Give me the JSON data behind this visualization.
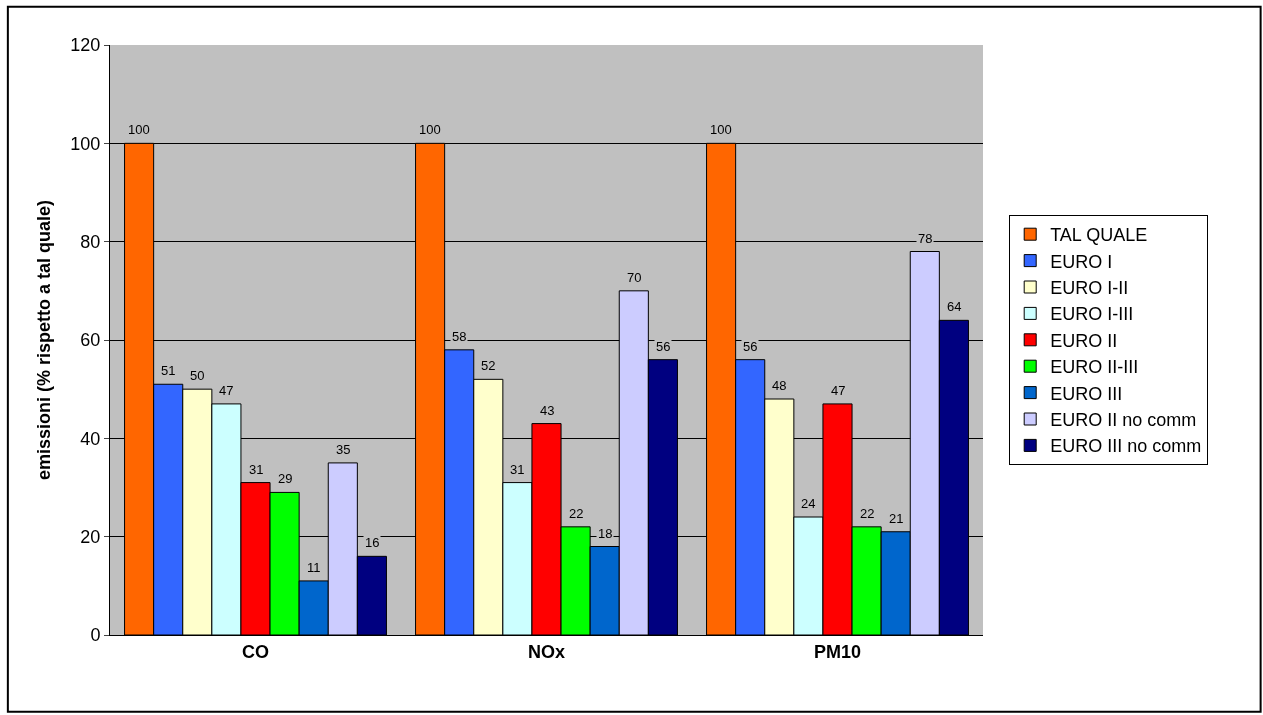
{
  "chart_data": {
    "type": "bar",
    "ylabel": "emissioni (% rispetto a tal quale)",
    "categories": [
      "CO",
      "NOx",
      "PM10"
    ],
    "series": [
      {
        "name": "TAL QUALE",
        "color": "#ff6600",
        "values": [
          100,
          100,
          100
        ]
      },
      {
        "name": "EURO I",
        "color": "#3366ff",
        "values": [
          51,
          58,
          56
        ]
      },
      {
        "name": "EURO I-II",
        "color": "#ffffcc",
        "values": [
          50,
          52,
          48
        ]
      },
      {
        "name": "EURO I-III",
        "color": "#ccffff",
        "values": [
          47,
          31,
          24
        ]
      },
      {
        "name": "EURO II",
        "color": "#ff0000",
        "values": [
          31,
          43,
          47
        ]
      },
      {
        "name": "EURO II-III",
        "color": "#00ff00",
        "values": [
          29,
          22,
          22
        ]
      },
      {
        "name": "EURO III",
        "color": "#0066cc",
        "values": [
          11,
          18,
          21
        ]
      },
      {
        "name": "EURO II no comm",
        "color": "#ccccff",
        "values": [
          35,
          70,
          78
        ]
      },
      {
        "name": "EURO III no comm",
        "color": "#000080",
        "values": [
          16,
          56,
          64
        ]
      }
    ],
    "ylim": [
      0,
      120
    ],
    "yticks": [
      0,
      20,
      40,
      60,
      80,
      100,
      120
    ],
    "grid": "y",
    "legend": "right",
    "data_labels": true
  }
}
